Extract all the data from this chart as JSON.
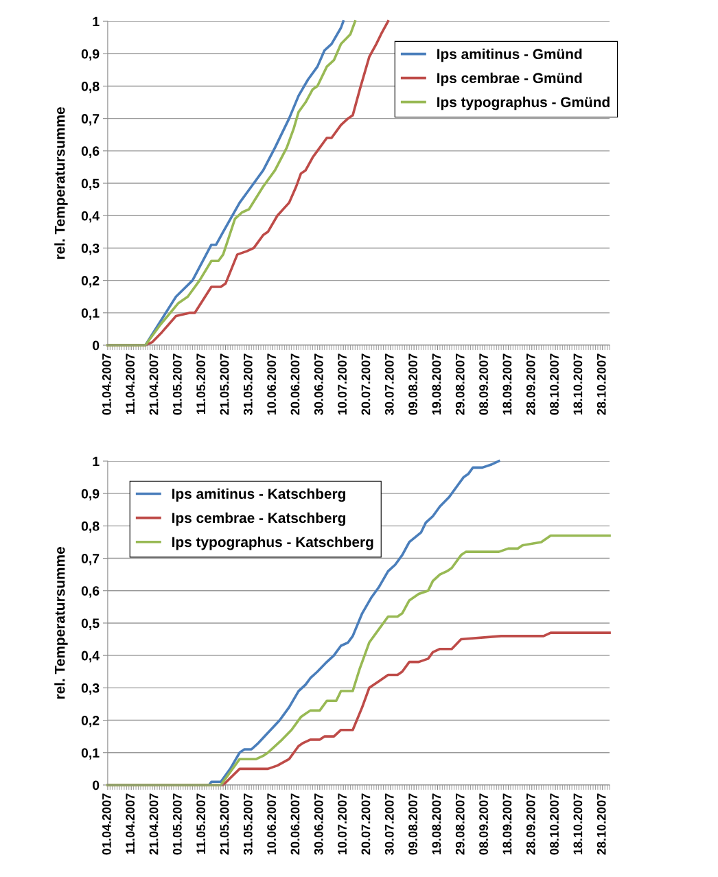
{
  "chart_data": [
    {
      "type": "line",
      "ylabel": "rel. Temperatursumme",
      "legend": "top right",
      "grid": "y",
      "xlim": [
        "2007-04-01",
        "2007-10-31"
      ],
      "xticks": [
        {
          "value": "2007-04-01",
          "label": "01.04.2007"
        },
        {
          "value": "2007-04-11",
          "label": "11.04.2007"
        },
        {
          "value": "2007-04-21",
          "label": "21.04.2007"
        },
        {
          "value": "2007-05-01",
          "label": "01.05.2007"
        },
        {
          "value": "2007-05-11",
          "label": "11.05.2007"
        },
        {
          "value": "2007-05-21",
          "label": "21.05.2007"
        },
        {
          "value": "2007-05-31",
          "label": "31.05.2007"
        },
        {
          "value": "2007-06-10",
          "label": "10.06.2007"
        },
        {
          "value": "2007-06-20",
          "label": "20.06.2007"
        },
        {
          "value": "2007-06-30",
          "label": "30.06.2007"
        },
        {
          "value": "2007-07-10",
          "label": "10.07.2007"
        },
        {
          "value": "2007-07-20",
          "label": "20.07.2007"
        },
        {
          "value": "2007-07-30",
          "label": "30.07.2007"
        },
        {
          "value": "2007-08-09",
          "label": "09.08.2007"
        },
        {
          "value": "2007-08-19",
          "label": "19.08.2007"
        },
        {
          "value": "2007-08-29",
          "label": "29.08.2007"
        },
        {
          "value": "2007-09-08",
          "label": "08.09.2007"
        },
        {
          "value": "2007-09-18",
          "label": "18.09.2007"
        },
        {
          "value": "2007-09-28",
          "label": "28.09.2007"
        },
        {
          "value": "2007-10-08",
          "label": "08.10.2007"
        },
        {
          "value": "2007-10-18",
          "label": "18.10.2007"
        },
        {
          "value": "2007-10-28",
          "label": "28.10.2007"
        }
      ],
      "ylim": [
        0,
        1
      ],
      "yticks": [
        0,
        {
          "value": 0.1,
          "label": "0,1"
        },
        {
          "value": 0.2,
          "label": "0,2"
        },
        {
          "value": 0.3,
          "label": "0,3"
        },
        {
          "value": 0.4,
          "label": "0,4"
        },
        {
          "value": 0.5,
          "label": "0,5"
        },
        {
          "value": 0.6,
          "label": "0,6"
        },
        {
          "value": 0.7,
          "label": "0,7"
        },
        {
          "value": 0.8,
          "label": "0,8"
        },
        {
          "value": 0.9,
          "label": "0,9"
        },
        1
      ],
      "series": [
        {
          "name": "Ips amitinus - Gmünd",
          "color": "#4a7ebb",
          "x": [
            "2007-04-01",
            "2007-04-17",
            "2007-04-30",
            "2007-05-07",
            "2007-05-15",
            "2007-05-17",
            "2007-05-20",
            "2007-05-27",
            "2007-05-31",
            "2007-06-06",
            "2007-06-11",
            "2007-06-17",
            "2007-06-21",
            "2007-06-25",
            "2007-06-29",
            "2007-07-02",
            "2007-07-05",
            "2007-07-09",
            "2007-07-10"
          ],
          "values": [
            0,
            0,
            0.15,
            0.2,
            0.31,
            0.31,
            0.35,
            0.44,
            0.48,
            0.54,
            0.61,
            0.7,
            0.77,
            0.82,
            0.86,
            0.91,
            0.93,
            0.98,
            1
          ]
        },
        {
          "name": "Ips cembrae - Gmünd",
          "color": "#be4b48",
          "x": [
            "2007-04-01",
            "2007-04-17",
            "2007-04-20",
            "2007-04-24",
            "2007-04-30",
            "2007-05-06",
            "2007-05-08",
            "2007-05-15",
            "2007-05-19",
            "2007-05-21",
            "2007-05-26",
            "2007-05-30",
            "2007-06-02",
            "2007-06-06",
            "2007-06-08",
            "2007-06-12",
            "2007-06-17",
            "2007-06-20",
            "2007-06-22",
            "2007-06-24",
            "2007-06-27",
            "2007-06-29",
            "2007-07-03",
            "2007-07-05",
            "2007-07-09",
            "2007-07-12",
            "2007-07-14",
            "2007-07-17",
            "2007-07-21",
            "2007-07-24",
            "2007-07-26",
            "2007-07-29"
          ],
          "values": [
            0,
            0,
            0.01,
            0.04,
            0.09,
            0.1,
            0.1,
            0.18,
            0.18,
            0.19,
            0.28,
            0.29,
            0.3,
            0.34,
            0.35,
            0.4,
            0.44,
            0.49,
            0.53,
            0.54,
            0.58,
            0.6,
            0.64,
            0.64,
            0.68,
            0.7,
            0.71,
            0.79,
            0.89,
            0.93,
            0.96,
            1
          ]
        },
        {
          "name": "Ips typographus - Gmünd",
          "color": "#98b954",
          "x": [
            "2007-04-01",
            "2007-04-17",
            "2007-04-23",
            "2007-05-01",
            "2007-05-05",
            "2007-05-10",
            "2007-05-15",
            "2007-05-18",
            "2007-05-20",
            "2007-05-25",
            "2007-05-28",
            "2007-05-31",
            "2007-06-06",
            "2007-06-11",
            "2007-06-16",
            "2007-06-19",
            "2007-06-21",
            "2007-06-24",
            "2007-06-27",
            "2007-06-29",
            "2007-07-03",
            "2007-07-06",
            "2007-07-09",
            "2007-07-13",
            "2007-07-15"
          ],
          "values": [
            0,
            0,
            0.06,
            0.13,
            0.15,
            0.2,
            0.26,
            0.26,
            0.28,
            0.39,
            0.41,
            0.42,
            0.49,
            0.54,
            0.61,
            0.67,
            0.72,
            0.75,
            0.79,
            0.8,
            0.86,
            0.88,
            0.93,
            0.96,
            1
          ]
        }
      ]
    },
    {
      "type": "line",
      "ylabel": "rel. Temperatursumme",
      "legend": "top left",
      "grid": "y",
      "xlim": [
        "2007-04-01",
        "2007-10-31"
      ],
      "xticks": [
        {
          "value": "2007-04-01",
          "label": "01.04.2007"
        },
        {
          "value": "2007-04-11",
          "label": "11.04.2007"
        },
        {
          "value": "2007-04-21",
          "label": "21.04.2007"
        },
        {
          "value": "2007-05-01",
          "label": "01.05.2007"
        },
        {
          "value": "2007-05-11",
          "label": "11.05.2007"
        },
        {
          "value": "2007-05-21",
          "label": "21.05.2007"
        },
        {
          "value": "2007-05-31",
          "label": "31.05.2007"
        },
        {
          "value": "2007-06-10",
          "label": "10.06.2007"
        },
        {
          "value": "2007-06-20",
          "label": "20.06.2007"
        },
        {
          "value": "2007-06-30",
          "label": "30.06.2007"
        },
        {
          "value": "2007-07-10",
          "label": "10.07.2007"
        },
        {
          "value": "2007-07-20",
          "label": "20.07.2007"
        },
        {
          "value": "2007-07-30",
          "label": "30.07.2007"
        },
        {
          "value": "2007-08-09",
          "label": "09.08.2007"
        },
        {
          "value": "2007-08-19",
          "label": "19.08.2007"
        },
        {
          "value": "2007-08-29",
          "label": "29.08.2007"
        },
        {
          "value": "2007-09-08",
          "label": "08.09.2007"
        },
        {
          "value": "2007-09-18",
          "label": "18.09.2007"
        },
        {
          "value": "2007-09-28",
          "label": "28.09.2007"
        },
        {
          "value": "2007-10-08",
          "label": "08.10.2007"
        },
        {
          "value": "2007-10-18",
          "label": "18.10.2007"
        },
        {
          "value": "2007-10-28",
          "label": "28.10.2007"
        }
      ],
      "ylim": [
        0,
        1
      ],
      "yticks": [
        0,
        {
          "value": 0.1,
          "label": "0,1"
        },
        {
          "value": 0.2,
          "label": "0,2"
        },
        {
          "value": 0.3,
          "label": "0,3"
        },
        {
          "value": 0.4,
          "label": "0,4"
        },
        {
          "value": 0.5,
          "label": "0,5"
        },
        {
          "value": 0.6,
          "label": "0,6"
        },
        {
          "value": 0.7,
          "label": "0,7"
        },
        {
          "value": 0.8,
          "label": "0,8"
        },
        {
          "value": 0.9,
          "label": "0,9"
        },
        1
      ],
      "series": [
        {
          "name": "Ips amitinus - Katschberg",
          "color": "#4a7ebb",
          "x": [
            "2007-04-01",
            "2007-05-14",
            "2007-05-15",
            "2007-05-19",
            "2007-05-23",
            "2007-05-27",
            "2007-05-29",
            "2007-06-01",
            "2007-06-04",
            "2007-06-13",
            "2007-06-17",
            "2007-06-21",
            "2007-06-24",
            "2007-06-26",
            "2007-06-29",
            "2007-07-03",
            "2007-07-06",
            "2007-07-09",
            "2007-07-12",
            "2007-07-14",
            "2007-07-18",
            "2007-07-22",
            "2007-07-25",
            "2007-07-29",
            "2007-08-01",
            "2007-08-04",
            "2007-08-07",
            "2007-08-12",
            "2007-08-14",
            "2007-08-17",
            "2007-08-20",
            "2007-08-24",
            "2007-08-27",
            "2007-08-30",
            "2007-09-01",
            "2007-09-03",
            "2007-09-07",
            "2007-09-11",
            "2007-09-14"
          ],
          "values": [
            0,
            0,
            0.01,
            0.01,
            0.05,
            0.1,
            0.11,
            0.11,
            0.13,
            0.2,
            0.24,
            0.29,
            0.31,
            0.33,
            0.35,
            0.38,
            0.4,
            0.43,
            0.44,
            0.46,
            0.53,
            0.58,
            0.61,
            0.66,
            0.68,
            0.71,
            0.75,
            0.78,
            0.81,
            0.83,
            0.86,
            0.89,
            0.92,
            0.95,
            0.96,
            0.98,
            0.98,
            0.99,
            1
          ]
        },
        {
          "name": "Ips cembrae - Katschberg",
          "color": "#be4b48",
          "x": [
            "2007-04-01",
            "2007-05-14",
            "2007-05-20",
            "2007-05-27",
            "2007-06-08",
            "2007-06-12",
            "2007-06-17",
            "2007-06-21",
            "2007-06-23",
            "2007-06-26",
            "2007-06-30",
            "2007-07-02",
            "2007-07-06",
            "2007-07-09",
            "2007-07-14",
            "2007-07-18",
            "2007-07-21",
            "2007-07-25",
            "2007-07-29",
            "2007-08-02",
            "2007-08-04",
            "2007-08-07",
            "2007-08-11",
            "2007-08-15",
            "2007-08-17",
            "2007-08-20",
            "2007-08-25",
            "2007-08-29",
            "2007-09-15",
            "2007-09-18",
            "2007-10-03",
            "2007-10-06",
            "2007-10-31"
          ],
          "values": [
            0,
            0,
            0,
            0.05,
            0.05,
            0.06,
            0.08,
            0.12,
            0.13,
            0.14,
            0.14,
            0.15,
            0.15,
            0.17,
            0.17,
            0.24,
            0.3,
            0.32,
            0.34,
            0.34,
            0.35,
            0.38,
            0.38,
            0.39,
            0.41,
            0.42,
            0.42,
            0.45,
            0.46,
            0.46,
            0.46,
            0.47,
            0.47
          ]
        },
        {
          "name": "Ips typographus - Katschberg",
          "color": "#98b954",
          "x": [
            "2007-04-01",
            "2007-05-14",
            "2007-05-19",
            "2007-05-27",
            "2007-06-03",
            "2007-06-06",
            "2007-06-08",
            "2007-06-14",
            "2007-06-18",
            "2007-06-22",
            "2007-06-24",
            "2007-06-26",
            "2007-06-30",
            "2007-07-03",
            "2007-07-07",
            "2007-07-09",
            "2007-07-14",
            "2007-07-17",
            "2007-07-21",
            "2007-07-25",
            "2007-07-29",
            "2007-08-02",
            "2007-08-04",
            "2007-08-07",
            "2007-08-11",
            "2007-08-15",
            "2007-08-17",
            "2007-08-20",
            "2007-08-23",
            "2007-08-25",
            "2007-08-29",
            "2007-08-31",
            "2007-09-14",
            "2007-09-18",
            "2007-09-22",
            "2007-09-24",
            "2007-10-02",
            "2007-10-06",
            "2007-10-31"
          ],
          "values": [
            0,
            0,
            0,
            0.08,
            0.08,
            0.09,
            0.1,
            0.14,
            0.17,
            0.21,
            0.22,
            0.23,
            0.23,
            0.26,
            0.26,
            0.29,
            0.29,
            0.36,
            0.44,
            0.48,
            0.52,
            0.52,
            0.53,
            0.57,
            0.59,
            0.6,
            0.63,
            0.65,
            0.66,
            0.67,
            0.71,
            0.72,
            0.72,
            0.73,
            0.73,
            0.74,
            0.75,
            0.77,
            0.77
          ]
        }
      ]
    }
  ]
}
